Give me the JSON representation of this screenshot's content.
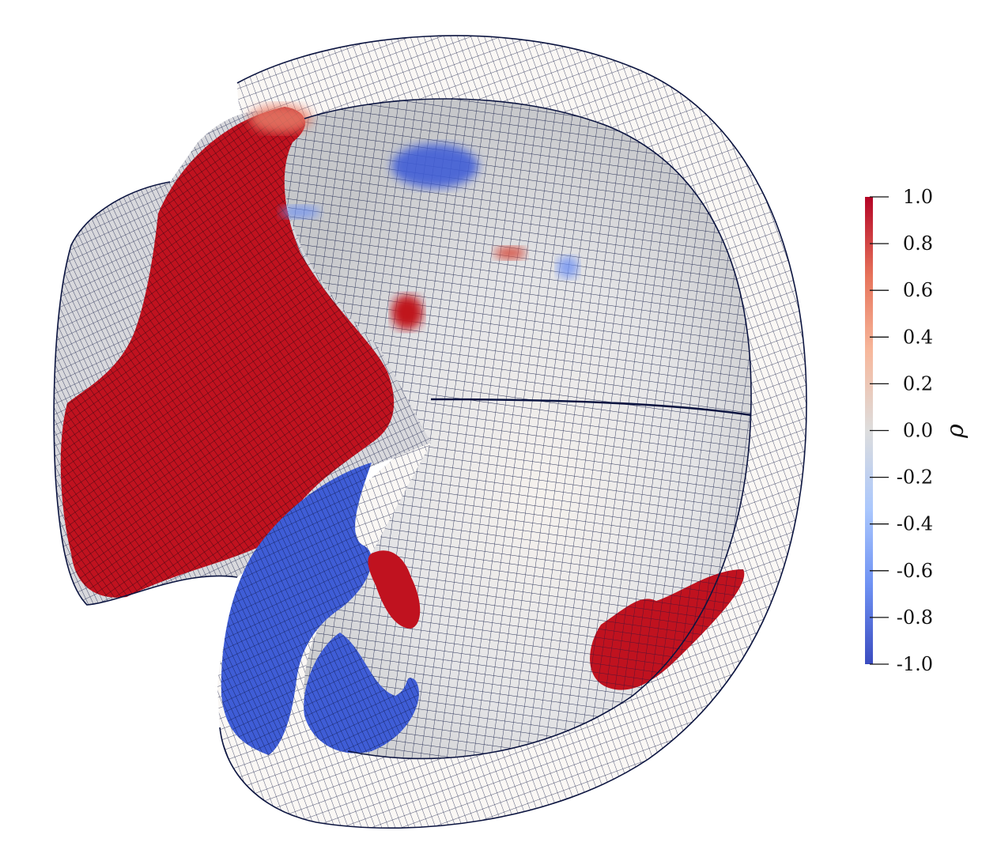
{
  "colorbar": {
    "title": "ρ",
    "min": -1.0,
    "max": 1.0,
    "ticks": [
      "1.0",
      "0.8",
      "0.6",
      "0.4",
      "0.2",
      "0.0",
      "-0.2",
      "-0.4",
      "-0.6",
      "-0.8",
      "-1.0"
    ],
    "colormap": [
      "#3b4cc0",
      "#6f92f3",
      "#aac7fd",
      "#dddddd",
      "#f7b89c",
      "#e7745b",
      "#b40426"
    ]
  },
  "colors": {
    "mesh_line": "#0b1440",
    "positive": "#c0121f",
    "negative": "#3f5dd6",
    "neutral": "#d9d9dc"
  }
}
